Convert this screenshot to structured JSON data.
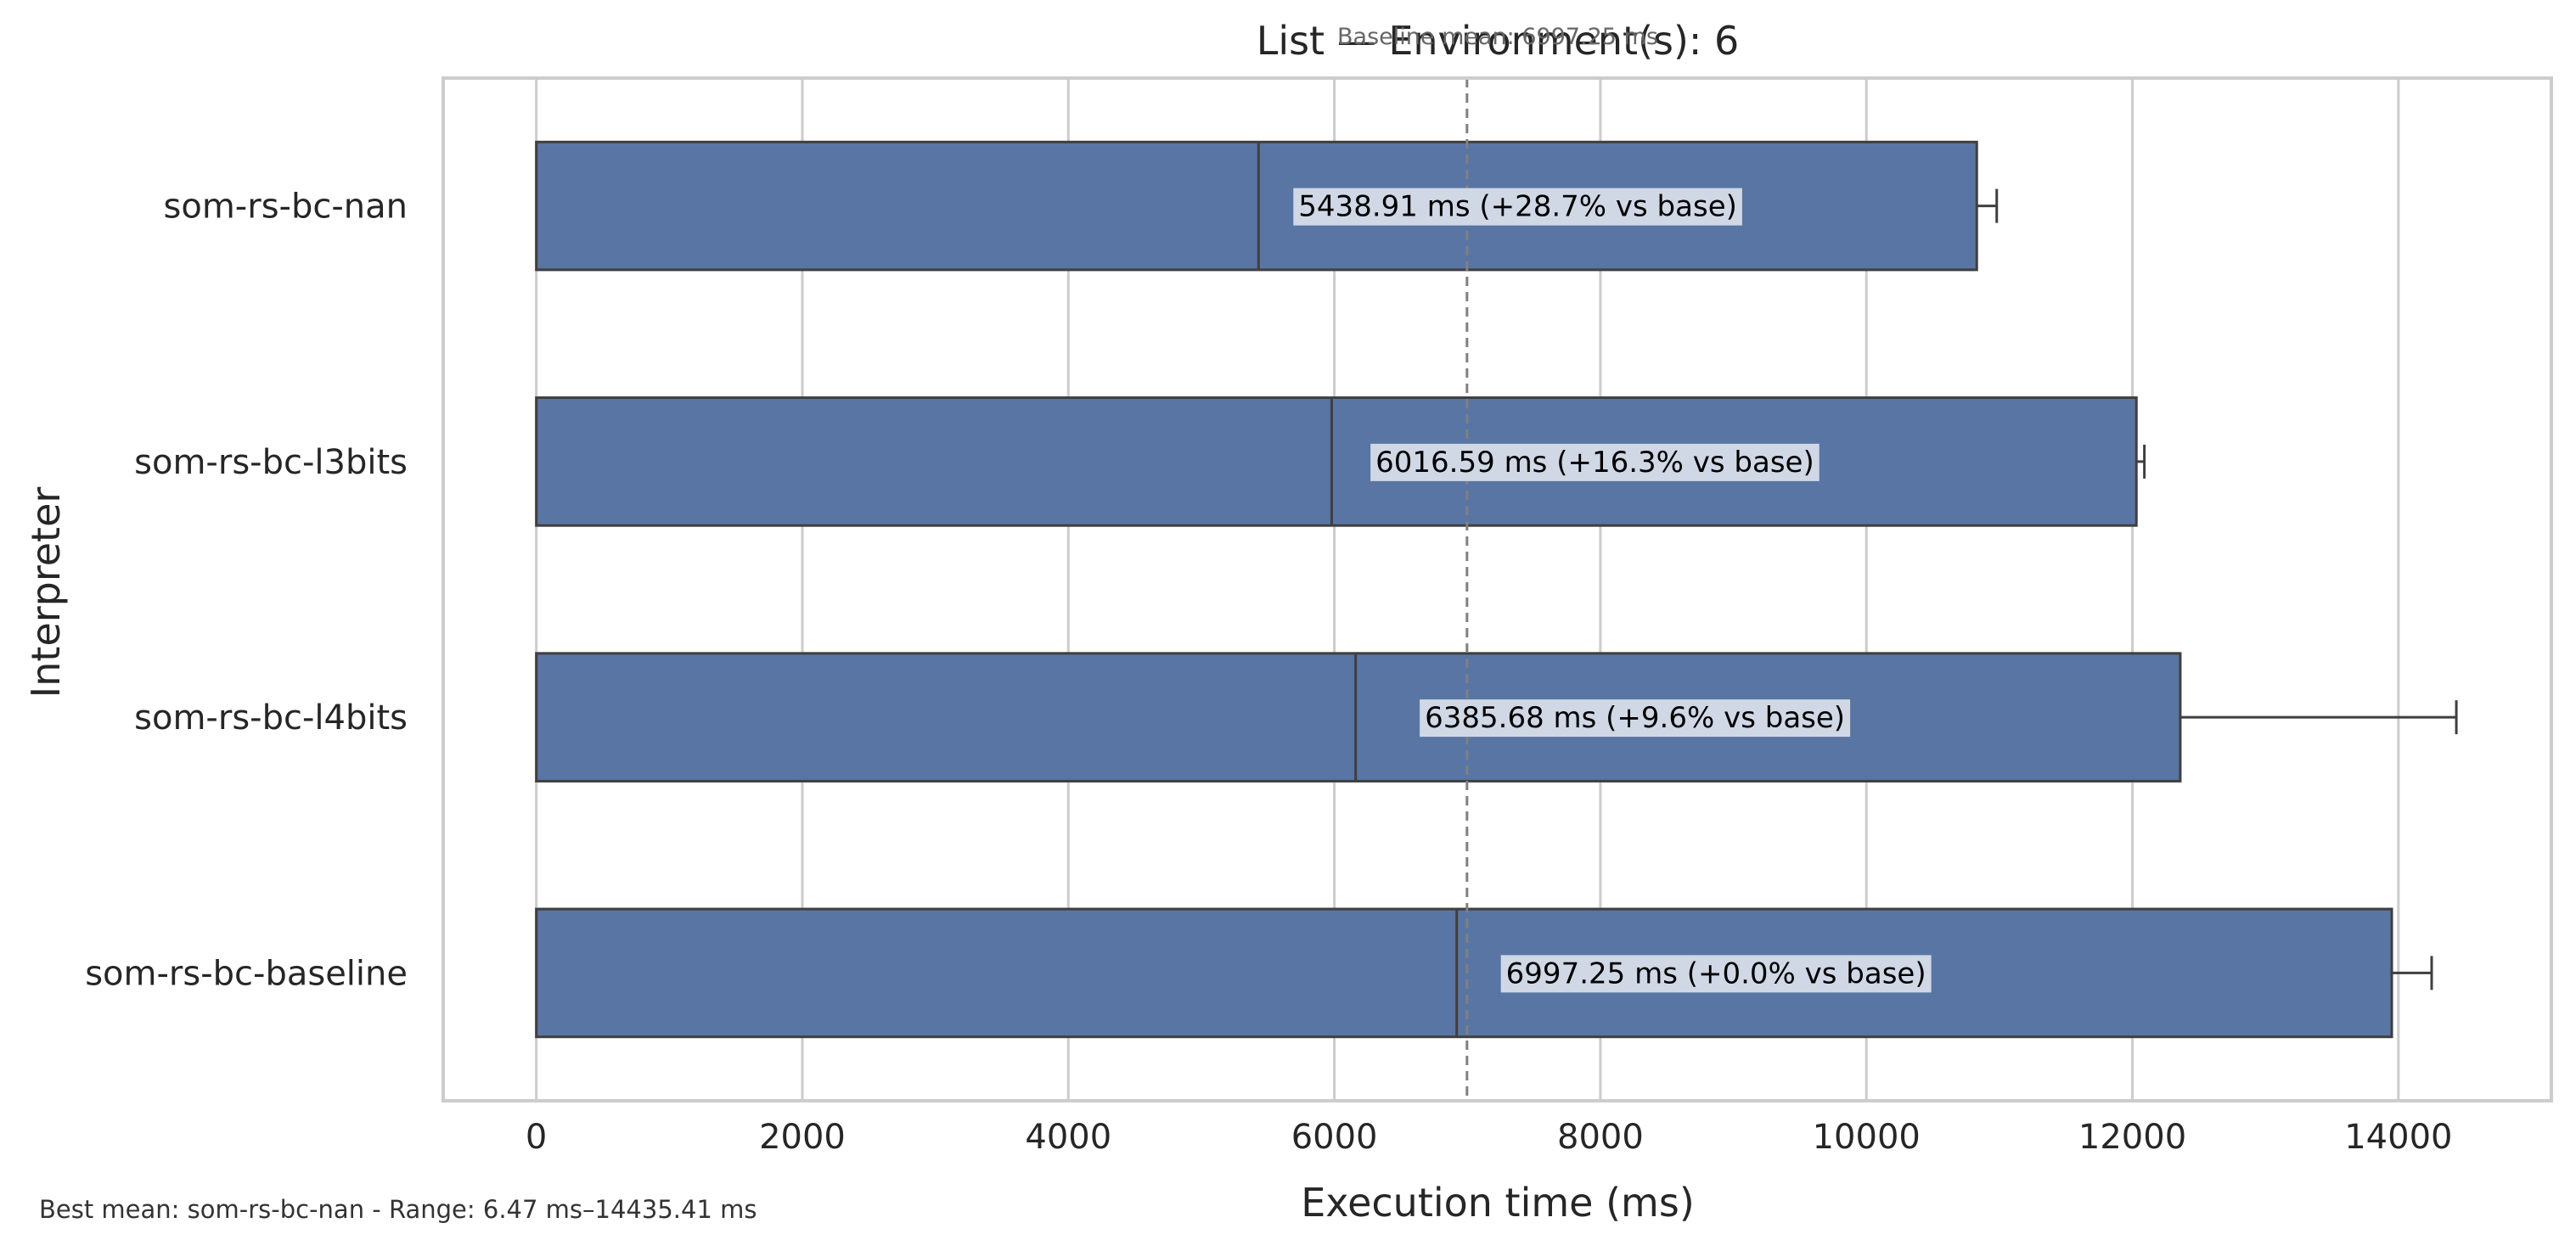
{
  "chart_data": {
    "type": "bar",
    "orientation": "horizontal",
    "title": "List — Environment(s): 6",
    "baseline_note": "Baseline mean: 6997.25 ms",
    "xlabel": "Execution time (ms)",
    "ylabel": "Interpreter",
    "xlim": [
      -700,
      15150
    ],
    "xticks": [
      0,
      2000,
      4000,
      6000,
      8000,
      10000,
      12000,
      14000
    ],
    "grid": true,
    "categories": [
      "som-rs-bc-nan",
      "som-rs-bc-l3bits",
      "som-rs-bc-l4bits",
      "som-rs-bc-baseline"
    ],
    "values": [
      10830,
      12030,
      12360,
      13950
    ],
    "medians": [
      5430,
      5980,
      6160,
      6920
    ],
    "error_upper": [
      10980,
      12090,
      14435.41,
      14250
    ],
    "labels": [
      "5438.91 ms  (+28.7% vs base)",
      "6016.59 ms  (+16.3% vs base)",
      "6385.68 ms  (+9.6% vs base)",
      "6997.25 ms  (+0.0% vs base)"
    ],
    "label_x": [
      5730,
      6310,
      6680,
      7290
    ],
    "baseline": 6997.25,
    "footer": "Best mean: som-rs-bc-nan - Range: 6.47 ms–14435.41 ms",
    "colors": {
      "bar": "#5975a4",
      "bar_edge": "#3f3f3f",
      "grid": "#cccccc",
      "frame": "#cccccc",
      "label_box": "#d0d8e6",
      "baseline_line": "#808080"
    }
  }
}
